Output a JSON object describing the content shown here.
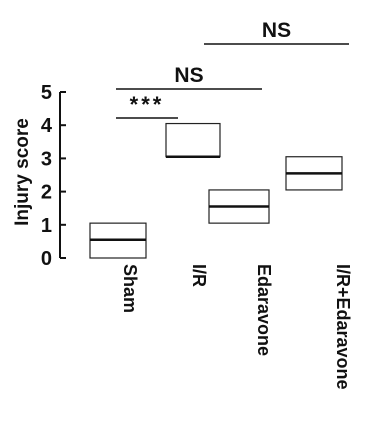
{
  "chart_data": {
    "type": "box",
    "ylabel": "Injury score",
    "ylim": [
      0,
      5
    ],
    "yticks": [
      "0",
      "1",
      "2",
      "3",
      "4",
      "5"
    ],
    "categories": [
      "Sham",
      "I/R",
      "Edaravone",
      "I/R+Edaravone"
    ],
    "boxes": [
      {
        "q1": 0.0,
        "median": 0.55,
        "q3": 1.05,
        "whisker_low": 0.0,
        "whisker_high": 1.05
      },
      {
        "q1": 3.05,
        "median": 3.05,
        "q3": 4.05,
        "whisker_low": 3.05,
        "whisker_high": 4.05
      },
      {
        "q1": 1.05,
        "median": 1.55,
        "q3": 2.05,
        "whisker_low": 1.05,
        "whisker_high": 2.05
      },
      {
        "q1": 2.05,
        "median": 2.55,
        "q3": 3.05,
        "whisker_low": 2.05,
        "whisker_high": 3.05
      }
    ],
    "annotations": [
      {
        "text": "***",
        "from": "Sham",
        "to": "I/R"
      },
      {
        "text": "NS",
        "from": "Sham",
        "to": "Edaravone"
      },
      {
        "text": "NS",
        "from": "I/R",
        "to": "I/R+Edaravone"
      }
    ]
  }
}
